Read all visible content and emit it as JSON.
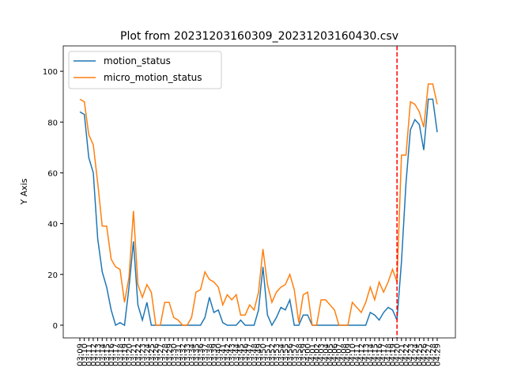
{
  "chart_data": {
    "type": "line",
    "title": "Plot from 20231203160309_20231203160430.csv",
    "ylabel": "Y Axis",
    "categories": [
      "03:09",
      "03:10",
      "03:11",
      "03:12",
      "03:13",
      "03:14",
      "03:15",
      "03:16",
      "03:17",
      "03:18",
      "03:19",
      "03:20",
      "03:21",
      "03:22",
      "03:23",
      "03:24",
      "03:25",
      "03:26",
      "03:27",
      "03:28",
      "03:29",
      "03:30",
      "03:31",
      "03:32",
      "03:33",
      "03:34",
      "03:35",
      "03:36",
      "03:37",
      "03:38",
      "03:39",
      "03:40",
      "03:41",
      "03:42",
      "03:43",
      "03:44",
      "03:45",
      "03:46",
      "03:47",
      "03:48",
      "03:49",
      "03:50",
      "03:51",
      "03:52",
      "03:53",
      "03:54",
      "03:55",
      "03:56",
      "03:57",
      "03:58",
      "03:59",
      "04:00",
      "04:01",
      "04:02",
      "04:03",
      "04:04",
      "04:05",
      "04:06",
      "04:07",
      "04:08",
      "04:09",
      "04:10",
      "04:11",
      "04:12",
      "04:13",
      "04:14",
      "04:15",
      "04:16",
      "04:17",
      "04:18",
      "04:19",
      "04:20",
      "04:21",
      "04:22",
      "04:23",
      "04:24",
      "04:25",
      "04:26",
      "04:27",
      "04:28",
      "04:29"
    ],
    "series": [
      {
        "name": "motion_status",
        "color": "#1f77b4",
        "values": [
          84,
          83,
          66,
          60,
          34,
          21,
          15,
          6,
          0,
          1,
          0,
          15,
          33,
          8,
          2,
          9,
          0,
          0,
          0,
          0,
          0,
          0,
          0,
          0,
          0,
          0,
          0,
          0,
          3,
          11,
          5,
          6,
          1,
          0,
          0,
          0,
          2,
          0,
          0,
          0,
          6,
          23,
          4,
          0,
          3,
          7,
          6,
          10,
          0,
          0,
          4,
          4,
          0,
          0,
          0,
          0,
          0,
          0,
          0,
          0,
          0,
          0,
          0,
          0,
          0,
          5,
          4,
          2,
          5,
          7,
          6,
          2,
          25,
          56,
          77,
          81,
          79,
          69,
          89,
          89,
          76
        ]
      },
      {
        "name": "micro_motion_status",
        "color": "#ff7f0e",
        "values": [
          89,
          88,
          75,
          71,
          56,
          39,
          39,
          26,
          23,
          22,
          9,
          19,
          45,
          16,
          11,
          16,
          13,
          0,
          0,
          9,
          9,
          3,
          2,
          0,
          0,
          3,
          13,
          14,
          21,
          18,
          17,
          15,
          8,
          12,
          10,
          12,
          4,
          4,
          8,
          6,
          13,
          30,
          16,
          9,
          13,
          15,
          16,
          20,
          14,
          1,
          12,
          13,
          0,
          0,
          10,
          10,
          8,
          6,
          0,
          0,
          0,
          9,
          7,
          5,
          9,
          15,
          10,
          17,
          13,
          17,
          22,
          17,
          67,
          67,
          88,
          87,
          84,
          78,
          95,
          95,
          87
        ]
      }
    ],
    "vline_x": "04:20",
    "vline_color": "#ff0000",
    "ylim": [
      -5,
      110
    ],
    "yticks": [
      0,
      20,
      40,
      60,
      80,
      100
    ],
    "legend": "upper left",
    "grid": false
  }
}
